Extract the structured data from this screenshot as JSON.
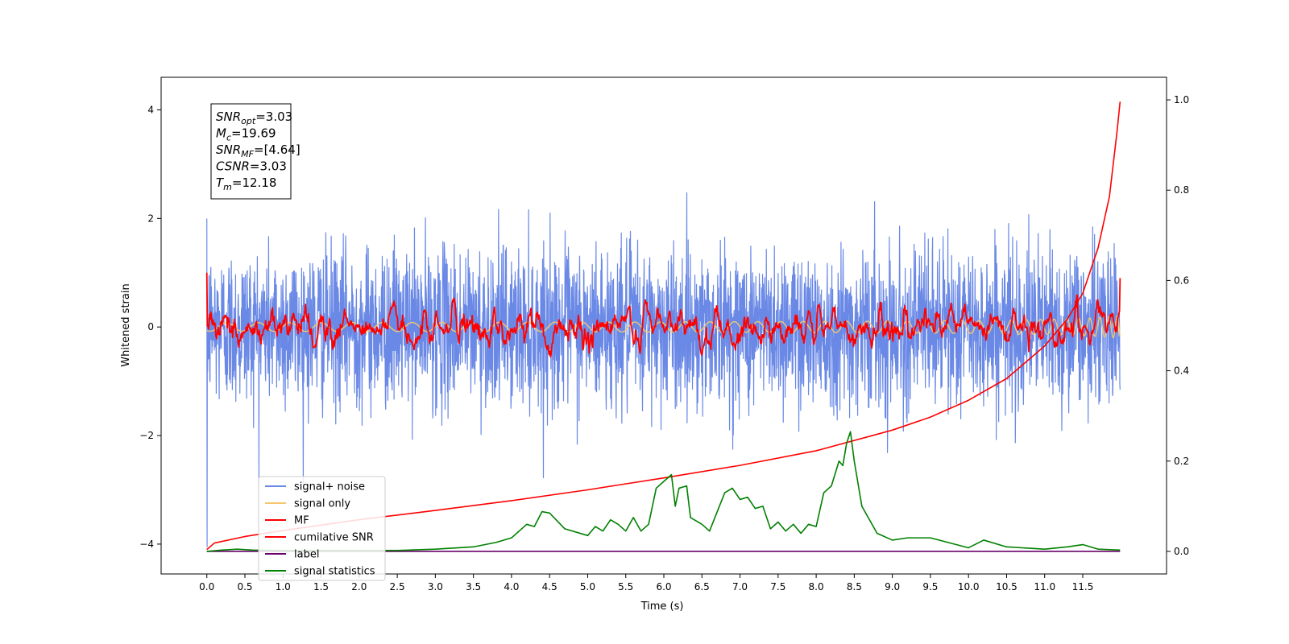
{
  "chart_data": {
    "type": "line",
    "xlabel": "Time (s)",
    "ylabel": "Whitened strain",
    "xlim": [
      -0.6,
      12.6
    ],
    "ylim": [
      -4.55,
      4.6
    ],
    "y2lim": [
      -0.05,
      1.05
    ],
    "xticks": [
      "0.0",
      "0.5",
      "1.0",
      "1.5",
      "2.0",
      "2.5",
      "3.0",
      "3.5",
      "4.0",
      "4.5",
      "5.0",
      "5.5",
      "6.0",
      "6.5",
      "7.0",
      "7.5",
      "8.0",
      "8.5",
      "9.0",
      "9.5",
      "10.0",
      "10.5",
      "11.0",
      "11.5"
    ],
    "yticks": [
      "4",
      "2",
      "0",
      "−2",
      "−4"
    ],
    "y2ticks": [
      "1.0",
      "0.8",
      "0.6",
      "0.4",
      "0.2",
      "0.0"
    ],
    "legend_position": "lower-left",
    "grid": false,
    "annotation": [
      {
        "sym": "SNR",
        "sub": "opt",
        "val": "=3.03"
      },
      {
        "sym": "M",
        "sub": "c",
        "val": "=19.69"
      },
      {
        "sym": "SNR",
        "sub": "MF",
        "val": "=[4.64]"
      },
      {
        "sym": "CSNR",
        "sub": "",
        "val": "=3.03"
      },
      {
        "sym": "T",
        "sub": "m",
        "val": "=12.18"
      }
    ],
    "series": [
      {
        "name": "signal+ noise",
        "color": "#6a89e6",
        "axis": "left",
        "kind": "noise",
        "x_range": [
          0,
          11.99
        ],
        "amplitude": 1.4
      },
      {
        "name": "signal only",
        "color": "#f5c66e",
        "axis": "left",
        "kind": "chirp",
        "x_range": [
          0,
          11.99
        ],
        "amplitude_end": 0.22
      },
      {
        "name": "MF",
        "color": "#ff0000",
        "axis": "left",
        "kind": "filtered-noise",
        "x_range": [
          0,
          11.99
        ],
        "start_value": 1.0,
        "end_value": 0.9
      },
      {
        "name": "cumilative SNR",
        "color": "#ff0000",
        "axis": "left",
        "x": [
          0,
          0.1,
          0.5,
          1.0,
          2.0,
          3.0,
          4.0,
          5.0,
          6.0,
          7.0,
          8.0,
          9.0,
          9.5,
          10.0,
          10.5,
          11.0,
          11.3,
          11.5,
          11.7,
          11.85,
          11.95,
          11.99
        ],
        "y": [
          -4.1,
          -3.98,
          -3.86,
          -3.75,
          -3.55,
          -3.38,
          -3.2,
          -3.0,
          -2.78,
          -2.55,
          -2.28,
          -1.9,
          -1.66,
          -1.35,
          -0.95,
          -0.35,
          0.15,
          0.62,
          1.45,
          2.4,
          3.6,
          4.15
        ]
      },
      {
        "name": "label",
        "color": "#6a006a",
        "axis": "right",
        "x": [
          0,
          11.99
        ],
        "y": [
          0.0,
          0.0
        ]
      },
      {
        "name": "signal statistics",
        "color": "#008000",
        "axis": "right",
        "x": [
          0,
          0.2,
          0.4,
          0.6,
          1.0,
          1.5,
          2.0,
          2.5,
          3.0,
          3.5,
          3.8,
          4.0,
          4.2,
          4.3,
          4.4,
          4.5,
          4.7,
          5.0,
          5.1,
          5.2,
          5.3,
          5.4,
          5.5,
          5.6,
          5.7,
          5.8,
          5.9,
          6.0,
          6.1,
          6.15,
          6.2,
          6.3,
          6.35,
          6.5,
          6.6,
          6.8,
          6.9,
          7.0,
          7.1,
          7.2,
          7.3,
          7.4,
          7.5,
          7.6,
          7.7,
          7.8,
          7.9,
          8.0,
          8.1,
          8.2,
          8.3,
          8.35,
          8.4,
          8.45,
          8.5,
          8.6,
          8.8,
          9.0,
          9.2,
          9.5,
          10.0,
          10.2,
          10.5,
          11.0,
          11.3,
          11.5,
          11.7,
          11.99
        ],
        "y": [
          0.0,
          0.003,
          0.005,
          0.003,
          0.002,
          0.002,
          0.002,
          0.002,
          0.005,
          0.01,
          0.02,
          0.03,
          0.06,
          0.055,
          0.088,
          0.085,
          0.05,
          0.035,
          0.055,
          0.045,
          0.07,
          0.06,
          0.045,
          0.075,
          0.045,
          0.06,
          0.14,
          0.155,
          0.17,
          0.1,
          0.14,
          0.145,
          0.075,
          0.06,
          0.045,
          0.13,
          0.14,
          0.115,
          0.12,
          0.095,
          0.1,
          0.05,
          0.065,
          0.045,
          0.06,
          0.04,
          0.06,
          0.055,
          0.13,
          0.145,
          0.2,
          0.19,
          0.24,
          0.265,
          0.2,
          0.1,
          0.04,
          0.025,
          0.03,
          0.03,
          0.008,
          0.025,
          0.01,
          0.005,
          0.01,
          0.015,
          0.005,
          0.003
        ]
      }
    ]
  }
}
